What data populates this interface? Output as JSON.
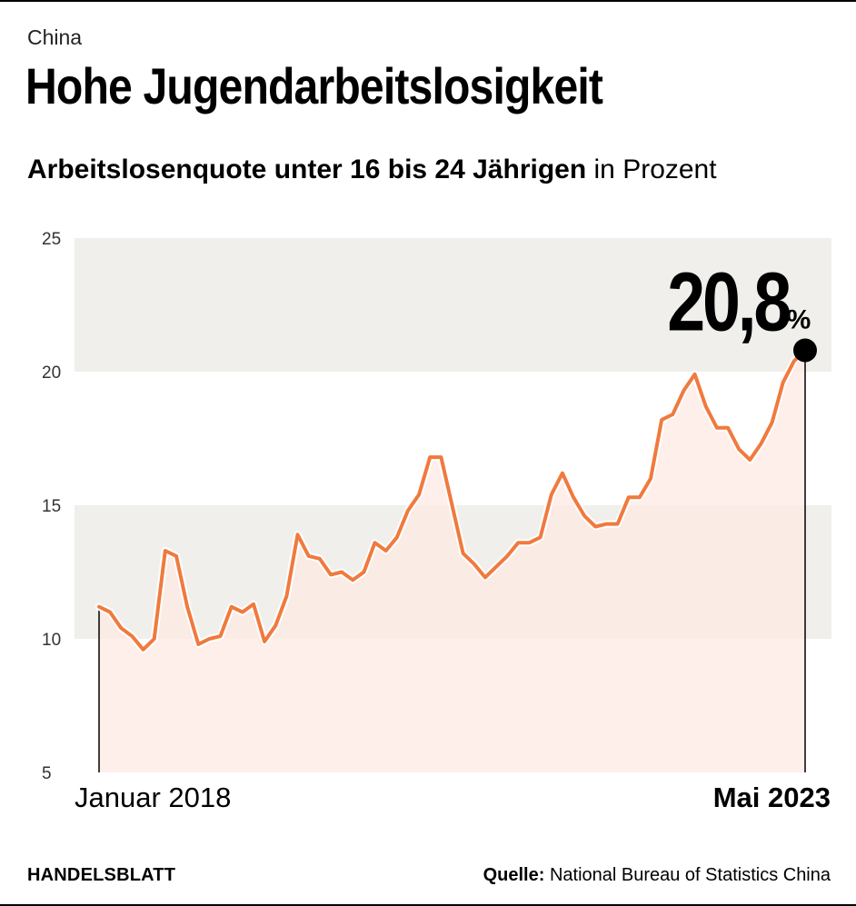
{
  "header": {
    "kicker": "China",
    "title": "Hohe Jugendarbeitslosigkeit",
    "subtitle_bold": "Arbeitslosenquote unter 16 bis 24 Jährigen",
    "subtitle_rest": " in Prozent"
  },
  "footer": {
    "brand": "HANDELSBLATT",
    "source_label": "Quelle:",
    "source_text": " National Bureau of Statistics China"
  },
  "colors": {
    "line": "#f07a3e",
    "area": "#fde9e2",
    "band": "#f0efeb",
    "marker": "#000000"
  },
  "chart_data": {
    "type": "area",
    "x_start_label": "Januar 2018",
    "x_end_label": "Mai 2023",
    "ylim": [
      5,
      25
    ],
    "yticks": [
      5,
      10,
      15,
      20,
      25
    ],
    "grid": "alternating horizontal bands",
    "highlight": {
      "value_text": "20,8",
      "unit": "%"
    },
    "x": [
      "2018-01",
      "2018-02",
      "2018-03",
      "2018-04",
      "2018-05",
      "2018-06",
      "2018-07",
      "2018-08",
      "2018-09",
      "2018-10",
      "2018-11",
      "2018-12",
      "2019-01",
      "2019-02",
      "2019-03",
      "2019-04",
      "2019-05",
      "2019-06",
      "2019-07",
      "2019-08",
      "2019-09",
      "2019-10",
      "2019-11",
      "2019-12",
      "2020-01",
      "2020-02",
      "2020-03",
      "2020-04",
      "2020-05",
      "2020-06",
      "2020-07",
      "2020-08",
      "2020-09",
      "2020-10",
      "2020-11",
      "2020-12",
      "2021-01",
      "2021-02",
      "2021-03",
      "2021-04",
      "2021-05",
      "2021-06",
      "2021-07",
      "2021-08",
      "2021-09",
      "2021-10",
      "2021-11",
      "2021-12",
      "2022-01",
      "2022-02",
      "2022-03",
      "2022-04",
      "2022-05",
      "2022-06",
      "2022-07",
      "2022-08",
      "2022-09",
      "2022-10",
      "2022-11",
      "2022-12",
      "2023-01",
      "2023-02",
      "2023-03",
      "2023-04",
      "2023-05"
    ],
    "values": [
      11.2,
      11.0,
      10.4,
      10.1,
      9.6,
      10.0,
      13.3,
      13.1,
      11.2,
      9.8,
      10.0,
      10.1,
      11.2,
      11.0,
      11.3,
      9.9,
      10.5,
      11.6,
      13.9,
      13.1,
      13.0,
      12.4,
      12.5,
      12.2,
      12.5,
      13.6,
      13.3,
      13.8,
      14.8,
      15.4,
      16.8,
      16.8,
      15.0,
      13.2,
      12.8,
      12.3,
      12.7,
      13.1,
      13.6,
      13.6,
      13.8,
      15.4,
      16.2,
      15.3,
      14.6,
      14.2,
      14.3,
      14.3,
      15.3,
      15.3,
      16.0,
      18.2,
      18.4,
      19.3,
      19.9,
      18.7,
      17.9,
      17.9,
      17.1,
      16.7,
      17.3,
      18.1,
      19.6,
      20.4,
      20.8
    ]
  }
}
